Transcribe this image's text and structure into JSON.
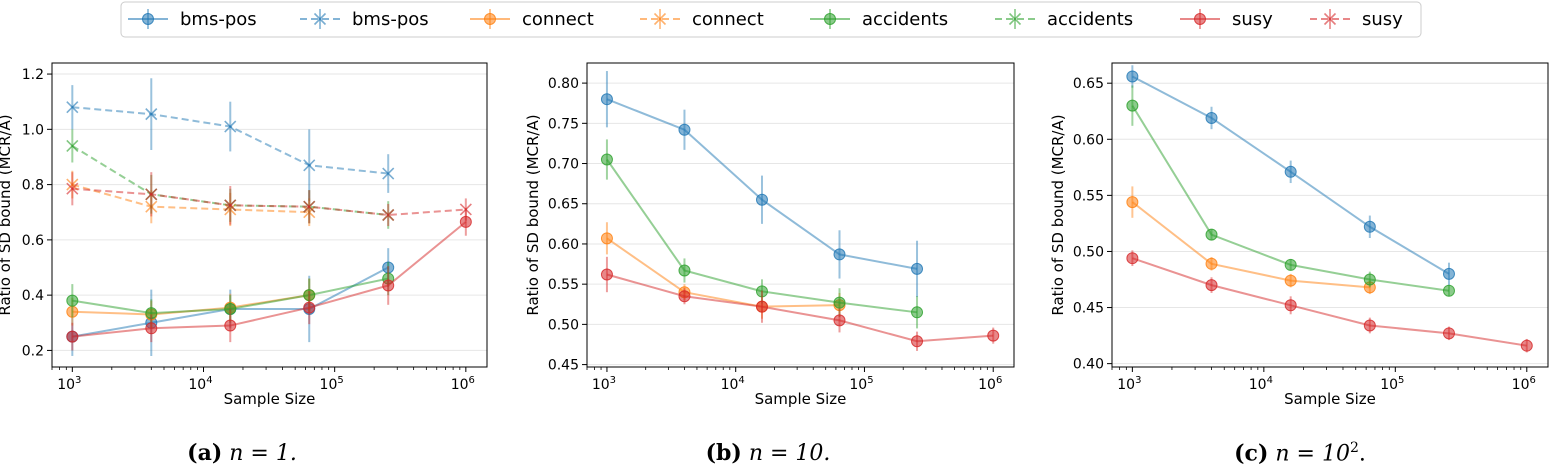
{
  "legend": {
    "entries": [
      {
        "label": "bms-pos",
        "style": "solid-circle",
        "color": "#1f77b4"
      },
      {
        "label": "bms-pos",
        "style": "dashed-x",
        "color": "#1f77b4"
      },
      {
        "label": "connect",
        "style": "solid-circle",
        "color": "#ff7f0e"
      },
      {
        "label": "connect",
        "style": "dashed-x",
        "color": "#ff7f0e"
      },
      {
        "label": "accidents",
        "style": "solid-circle",
        "color": "#2ca02c"
      },
      {
        "label": "accidents",
        "style": "dashed-x",
        "color": "#2ca02c"
      },
      {
        "label": "susy",
        "style": "solid-circle",
        "color": "#d62728"
      },
      {
        "label": "susy",
        "style": "dashed-x",
        "color": "#d62728"
      }
    ],
    "placement": "top-center"
  },
  "captions": [
    {
      "tag": "(a)",
      "eq": "n = 1."
    },
    {
      "tag": "(b)",
      "eq": "n = 10."
    },
    {
      "tag": "(c)",
      "eq": "n = 10",
      "sup": "2",
      "end": "."
    }
  ],
  "chart_data": [
    {
      "type": "line",
      "xlabel": "Sample Size",
      "ylabel": "Ratio of SD bound (MCR/A)",
      "xscale": "log",
      "xlim": [
        700,
        1450000
      ],
      "ylim": [
        0.14,
        1.24
      ],
      "yticks": [
        0.2,
        0.4,
        0.6,
        0.8,
        1.0,
        1.2
      ],
      "ytick_labels": [
        "0.2",
        "0.4",
        "0.6",
        "0.8",
        "1.0",
        "1.2"
      ],
      "xticks": [
        1000,
        10000,
        100000,
        1000000
      ],
      "xtick_labels": [
        [
          "10",
          "3"
        ],
        [
          "10",
          "4"
        ],
        [
          "10",
          "5"
        ],
        [
          "10",
          "6"
        ]
      ],
      "grid": true,
      "series": [
        {
          "name": "bms-pos",
          "style": "solid",
          "marker": "circle",
          "color": "#1f77b4",
          "x": [
            1000,
            4000,
            16000,
            64000,
            256000
          ],
          "y": [
            0.25,
            0.3,
            0.35,
            0.35,
            0.5
          ],
          "err": [
            0.07,
            0.12,
            0.07,
            0.12,
            0.07
          ]
        },
        {
          "name": "bms-pos",
          "style": "dashed",
          "marker": "x",
          "color": "#1f77b4",
          "x": [
            1000,
            4000,
            16000,
            64000,
            256000
          ],
          "y": [
            1.08,
            1.055,
            1.01,
            0.87,
            0.84
          ],
          "err": [
            0.08,
            0.13,
            0.09,
            0.13,
            0.07
          ]
        },
        {
          "name": "connect",
          "style": "solid",
          "marker": "circle",
          "color": "#ff7f0e",
          "x": [
            1000,
            4000,
            16000,
            64000
          ],
          "y": [
            0.34,
            0.33,
            0.355,
            0.4
          ],
          "err": [
            0.05,
            0.05,
            0.05,
            0.06
          ]
        },
        {
          "name": "connect",
          "style": "dashed",
          "marker": "x",
          "color": "#ff7f0e",
          "x": [
            1000,
            4000,
            16000,
            64000
          ],
          "y": [
            0.8,
            0.72,
            0.71,
            0.7
          ],
          "err": [
            0.05,
            0.06,
            0.06,
            0.05
          ]
        },
        {
          "name": "accidents",
          "style": "solid",
          "marker": "circle",
          "color": "#2ca02c",
          "x": [
            1000,
            4000,
            16000,
            64000,
            256000
          ],
          "y": [
            0.38,
            0.335,
            0.35,
            0.4,
            0.46
          ],
          "err": [
            0.06,
            0.05,
            0.05,
            0.06,
            0.06
          ]
        },
        {
          "name": "accidents",
          "style": "dashed",
          "marker": "x",
          "color": "#2ca02c",
          "x": [
            1000,
            4000,
            16000,
            64000,
            256000
          ],
          "y": [
            0.94,
            0.765,
            0.725,
            0.72,
            0.69
          ],
          "err": [
            0.06,
            0.07,
            0.06,
            0.06,
            0.05
          ]
        },
        {
          "name": "susy",
          "style": "solid",
          "marker": "circle",
          "color": "#d62728",
          "x": [
            1000,
            4000,
            16000,
            64000,
            256000,
            1000000
          ],
          "y": [
            0.25,
            0.28,
            0.29,
            0.355,
            0.435,
            0.665
          ],
          "err": [
            0.05,
            0.05,
            0.06,
            0.06,
            0.07,
            0.05
          ]
        },
        {
          "name": "susy",
          "style": "dashed",
          "marker": "x",
          "color": "#d62728",
          "x": [
            1000,
            4000,
            16000,
            64000,
            256000,
            1000000
          ],
          "y": [
            0.785,
            0.765,
            0.725,
            0.72,
            0.69,
            0.71
          ],
          "err": [
            0.06,
            0.08,
            0.07,
            0.06,
            0.04,
            0.04
          ]
        }
      ]
    },
    {
      "type": "line",
      "xlabel": "Sample Size",
      "ylabel": "Ratio of SD bound (MCR/A)",
      "xscale": "log",
      "xlim": [
        700,
        1450000
      ],
      "ylim": [
        0.447,
        0.825
      ],
      "yticks": [
        0.45,
        0.5,
        0.55,
        0.6,
        0.65,
        0.7,
        0.75,
        0.8
      ],
      "ytick_labels": [
        "0.45",
        "0.50",
        "0.55",
        "0.60",
        "0.65",
        "0.70",
        "0.75",
        "0.80"
      ],
      "xticks": [
        1000,
        10000,
        100000,
        1000000
      ],
      "xtick_labels": [
        [
          "10",
          "3"
        ],
        [
          "10",
          "4"
        ],
        [
          "10",
          "5"
        ],
        [
          "10",
          "6"
        ]
      ],
      "grid": true,
      "series": [
        {
          "name": "bms-pos",
          "style": "solid",
          "marker": "circle",
          "color": "#1f77b4",
          "x": [
            1000,
            4000,
            16000,
            64000,
            256000
          ],
          "y": [
            0.78,
            0.742,
            0.655,
            0.587,
            0.569
          ],
          "err": [
            0.035,
            0.025,
            0.03,
            0.03,
            0.035
          ]
        },
        {
          "name": "connect",
          "style": "solid",
          "marker": "circle",
          "color": "#ff7f0e",
          "x": [
            1000,
            4000,
            16000,
            64000
          ],
          "y": [
            0.607,
            0.54,
            0.522,
            0.524
          ],
          "err": [
            0.02,
            0.01,
            0.015,
            0.015
          ]
        },
        {
          "name": "accidents",
          "style": "solid",
          "marker": "circle",
          "color": "#2ca02c",
          "x": [
            1000,
            4000,
            16000,
            64000,
            256000
          ],
          "y": [
            0.705,
            0.567,
            0.541,
            0.527,
            0.515
          ],
          "err": [
            0.025,
            0.015,
            0.015,
            0.018,
            0.02
          ]
        },
        {
          "name": "susy",
          "style": "solid",
          "marker": "circle",
          "color": "#d62728",
          "x": [
            1000,
            4000,
            16000,
            64000,
            256000,
            1000000
          ],
          "y": [
            0.562,
            0.535,
            0.522,
            0.505,
            0.479,
            0.486
          ],
          "err": [
            0.022,
            0.01,
            0.02,
            0.015,
            0.012,
            0.01
          ]
        }
      ]
    },
    {
      "type": "line",
      "xlabel": "Sample Size",
      "ylabel": "Ratio of SD bound (MCR/A)",
      "xscale": "log",
      "xlim": [
        700,
        1450000
      ],
      "ylim": [
        0.397,
        0.668
      ],
      "yticks": [
        0.4,
        0.45,
        0.5,
        0.55,
        0.6,
        0.65
      ],
      "ytick_labels": [
        "0.40",
        "0.45",
        "0.50",
        "0.55",
        "0.60",
        "0.65"
      ],
      "xticks": [
        1000,
        10000,
        100000,
        1000000
      ],
      "xtick_labels": [
        [
          "10",
          "3"
        ],
        [
          "10",
          "4"
        ],
        [
          "10",
          "5"
        ],
        [
          "10",
          "6"
        ]
      ],
      "grid": true,
      "series": [
        {
          "name": "bms-pos",
          "style": "solid",
          "marker": "circle",
          "color": "#1f77b4",
          "x": [
            1000,
            4000,
            16000,
            64000,
            256000
          ],
          "y": [
            0.656,
            0.619,
            0.571,
            0.522,
            0.48
          ],
          "err": [
            0.01,
            0.01,
            0.01,
            0.01,
            0.01
          ]
        },
        {
          "name": "connect",
          "style": "solid",
          "marker": "circle",
          "color": "#ff7f0e",
          "x": [
            1000,
            4000,
            16000,
            64000
          ],
          "y": [
            0.544,
            0.489,
            0.474,
            0.468
          ],
          "err": [
            0.014,
            0.006,
            0.006,
            0.006
          ]
        },
        {
          "name": "accidents",
          "style": "solid",
          "marker": "circle",
          "color": "#2ca02c",
          "x": [
            1000,
            4000,
            16000,
            64000,
            256000
          ],
          "y": [
            0.63,
            0.515,
            0.488,
            0.475,
            0.465
          ],
          "err": [
            0.018,
            0.005,
            0.005,
            0.007,
            0.005
          ]
        },
        {
          "name": "susy",
          "style": "solid",
          "marker": "circle",
          "color": "#d62728",
          "x": [
            1000,
            4000,
            16000,
            64000,
            256000,
            1000000
          ],
          "y": [
            0.494,
            0.47,
            0.452,
            0.434,
            0.427,
            0.416
          ],
          "err": [
            0.007,
            0.007,
            0.008,
            0.007,
            0.006,
            0.006
          ]
        }
      ]
    }
  ]
}
